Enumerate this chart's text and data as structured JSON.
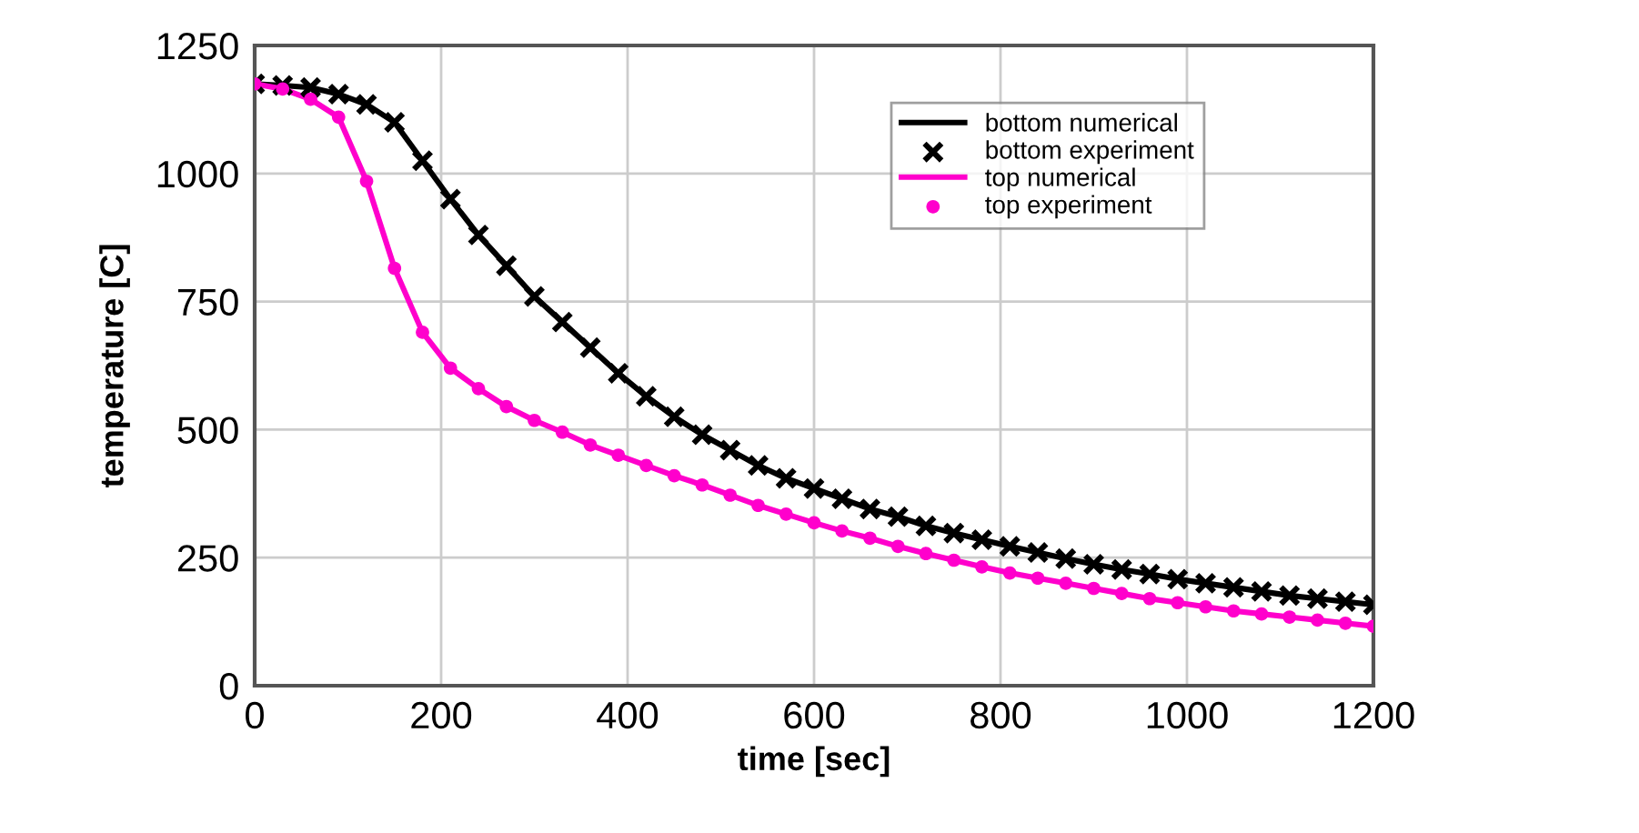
{
  "chart_data": {
    "type": "line",
    "xlabel": "time [sec]",
    "ylabel": "temperature [C]",
    "x": [
      0,
      30,
      60,
      90,
      120,
      150,
      180,
      210,
      240,
      270,
      300,
      330,
      360,
      390,
      420,
      450,
      480,
      510,
      540,
      570,
      600,
      630,
      660,
      690,
      720,
      750,
      780,
      810,
      840,
      870,
      900,
      930,
      960,
      990,
      1020,
      1050,
      1080,
      1110,
      1140,
      1170,
      1200
    ],
    "series": [
      {
        "name": "bottom numerical",
        "color": "#000000",
        "marker": "none",
        "line_style": "solid",
        "values": [
          1175,
          1172,
          1168,
          1155,
          1135,
          1100,
          1025,
          950,
          880,
          820,
          760,
          710,
          660,
          610,
          565,
          525,
          490,
          460,
          430,
          405,
          385,
          365,
          345,
          330,
          312,
          298,
          285,
          272,
          260,
          248,
          237,
          227,
          218,
          208,
          200,
          192,
          184,
          176,
          170,
          164,
          158
        ]
      },
      {
        "name": "bottom experiment",
        "type": "scatter",
        "color": "#000000",
        "marker": "cross",
        "values": [
          1175,
          1172,
          1168,
          1155,
          1135,
          1100,
          1025,
          950,
          880,
          820,
          760,
          710,
          660,
          610,
          565,
          525,
          490,
          460,
          430,
          405,
          385,
          365,
          345,
          330,
          312,
          298,
          285,
          272,
          260,
          248,
          237,
          227,
          218,
          208,
          200,
          192,
          184,
          176,
          170,
          164,
          158
        ]
      },
      {
        "name": "top numerical",
        "color": "#ff00cc",
        "marker": "none",
        "line_style": "solid",
        "values": [
          1175,
          1165,
          1145,
          1110,
          985,
          815,
          690,
          620,
          580,
          545,
          518,
          495,
          470,
          450,
          430,
          410,
          392,
          372,
          352,
          335,
          318,
          302,
          288,
          272,
          258,
          245,
          232,
          220,
          210,
          200,
          190,
          180,
          170,
          162,
          154,
          146,
          140,
          134,
          128,
          122,
          116
        ]
      },
      {
        "name": "top experiment",
        "type": "scatter",
        "color": "#ff00cc",
        "marker": "circle",
        "values": [
          1175,
          1165,
          1145,
          1110,
          985,
          815,
          690,
          620,
          580,
          545,
          518,
          495,
          470,
          450,
          430,
          410,
          392,
          372,
          352,
          335,
          318,
          302,
          288,
          272,
          258,
          245,
          232,
          220,
          210,
          200,
          190,
          180,
          170,
          162,
          154,
          146,
          140,
          134,
          128,
          122,
          116
        ]
      }
    ],
    "xlim": [
      0,
      1200
    ],
    "ylim": [
      0,
      1250
    ],
    "xticks": [
      0,
      200,
      400,
      600,
      800,
      1000,
      1200
    ],
    "yticks": [
      0,
      250,
      500,
      750,
      1000,
      1250
    ],
    "grid": true,
    "legend": "top right"
  }
}
